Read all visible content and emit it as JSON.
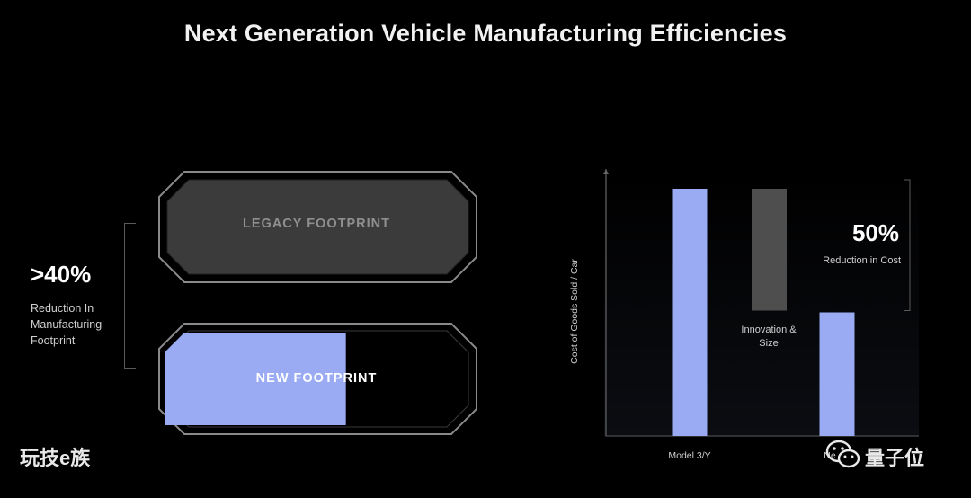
{
  "title": "Next Generation Vehicle Manufacturing Efficiencies",
  "footprint": {
    "stat_value": ">40%",
    "stat_lines": [
      "Reduction In",
      "Manufacturing",
      "Footprint"
    ],
    "legacy_label": "LEGACY FOOTPRINT",
    "new_label": "NEW FOOTPRINT",
    "new_fill_fraction": 0.58
  },
  "chart_data": {
    "type": "bar",
    "categories": [
      "Model 3/Y",
      "Ne"
    ],
    "values": [
      100,
      50
    ],
    "floating_bar": {
      "label_lines": [
        "Innovation &",
        "Size"
      ],
      "range": [
        50,
        100
      ]
    },
    "ylabel": "Cost of Goods Sold / Car",
    "annotation": {
      "value": "50%",
      "text": "Reduction in Cost"
    },
    "ylim": [
      0,
      108
    ]
  },
  "colors": {
    "bar": "#9aabf3",
    "floating_bar": "#4e4e4e",
    "legacy_fill": "#3b3b3b",
    "outline": "#8a8a8a"
  },
  "watermarks": {
    "left": "玩技e族",
    "right": "量子位"
  }
}
